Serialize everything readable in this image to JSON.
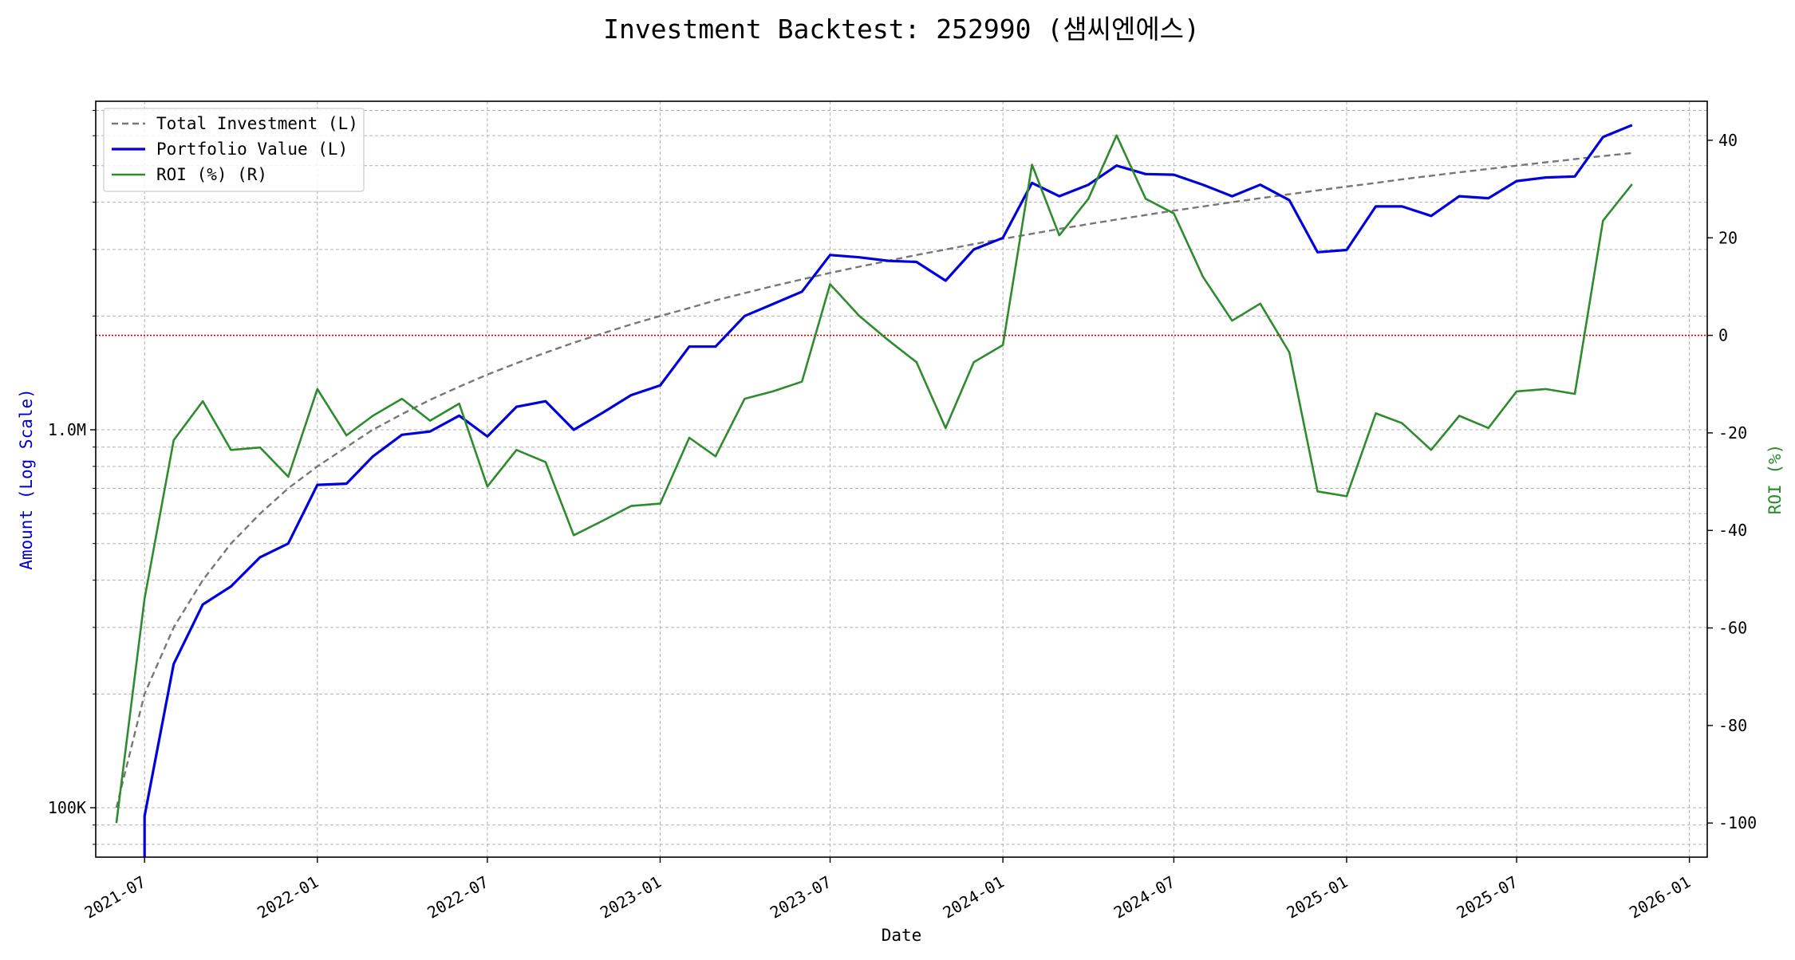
{
  "chart_data": {
    "type": "line",
    "title": "Investment Backtest: 252990 (샘씨엔에스)",
    "xlabel": "Date",
    "ylabel_left": "Amount (Log Scale)",
    "ylabel_right": "ROI (%)",
    "left_axis": {
      "scale": "log",
      "range": [
        74000,
        7400000
      ],
      "tick_values": [
        100000,
        1000000
      ],
      "tick_labels": [
        "100K",
        "1.0M"
      ],
      "color": "#0000cc"
    },
    "right_axis": {
      "scale": "linear",
      "range": [
        -107,
        48
      ],
      "tick_values": [
        -100,
        -80,
        -60,
        -40,
        -20,
        0,
        20,
        40
      ],
      "tick_labels": [
        "-100",
        "-80",
        "-60",
        "-40",
        "-20",
        "0",
        "20",
        "40"
      ],
      "color": "#228b22"
    },
    "x_axis": {
      "range": [
        "2021-05-10",
        "2026-01-20"
      ],
      "tick_values": [
        "2021-07-01",
        "2022-01-01",
        "2022-07-01",
        "2023-01-01",
        "2023-07-01",
        "2024-01-01",
        "2024-07-01",
        "2025-01-01",
        "2025-07-01",
        "2026-01-01"
      ],
      "tick_labels": [
        "2021-07",
        "2022-01",
        "2022-07",
        "2023-01",
        "2023-07",
        "2024-01",
        "2024-07",
        "2025-01",
        "2025-07",
        "2026-01"
      ]
    },
    "grid": true,
    "legend_position": "top-left",
    "reference_line": {
      "axis": "right",
      "value": 0,
      "color": "#cc0000",
      "style": "dotted"
    },
    "x": [
      "2021-06-01",
      "2021-07-01",
      "2021-08-01",
      "2021-09-01",
      "2021-10-01",
      "2021-11-01",
      "2021-12-01",
      "2022-01-01",
      "2022-02-01",
      "2022-03-01",
      "2022-04-01",
      "2022-05-01",
      "2022-06-01",
      "2022-07-01",
      "2022-08-01",
      "2022-09-01",
      "2022-10-01",
      "2022-11-01",
      "2022-12-01",
      "2023-01-01",
      "2023-02-01",
      "2023-03-01",
      "2023-04-01",
      "2023-05-01",
      "2023-06-01",
      "2023-07-01",
      "2023-08-01",
      "2023-09-01",
      "2023-10-01",
      "2023-11-01",
      "2023-12-01",
      "2024-01-01",
      "2024-02-01",
      "2024-03-01",
      "2024-04-01",
      "2024-05-01",
      "2024-06-01",
      "2024-07-01",
      "2024-08-01",
      "2024-09-01",
      "2024-10-01",
      "2024-11-01",
      "2024-12-01",
      "2025-01-01",
      "2025-02-01",
      "2025-03-01",
      "2025-04-01",
      "2025-05-01",
      "2025-06-01",
      "2025-07-01",
      "2025-08-01",
      "2025-09-01",
      "2025-10-01",
      "2025-11-01"
    ],
    "series": [
      {
        "name": "Total Investment (L)",
        "axis": "left",
        "color": "#777777",
        "dash": "dashed",
        "values": [
          100000,
          200000,
          300000,
          400000,
          500000,
          600000,
          700000,
          800000,
          900000,
          1000000,
          1100000,
          1200000,
          1300000,
          1400000,
          1500000,
          1600000,
          1700000,
          1800000,
          1900000,
          2000000,
          2100000,
          2200000,
          2300000,
          2400000,
          2500000,
          2600000,
          2700000,
          2800000,
          2900000,
          3000000,
          3100000,
          3200000,
          3300000,
          3400000,
          3500000,
          3600000,
          3700000,
          3800000,
          3900000,
          4000000,
          4100000,
          4200000,
          4300000,
          4400000,
          4500000,
          4600000,
          4700000,
          4800000,
          4900000,
          5000000,
          5100000,
          5200000,
          5300000,
          5400000
        ]
      },
      {
        "name": "Portfolio Value (L)",
        "axis": "left",
        "color": "#0000dd",
        "dash": "solid",
        "values": [
          null,
          95000,
          240000,
          345000,
          385000,
          460000,
          500000,
          715000,
          720000,
          850000,
          970000,
          990000,
          1090000,
          960000,
          1150000,
          1190000,
          1000000,
          1110000,
          1235000,
          1310000,
          1660000,
          1660000,
          2000000,
          2150000,
          2320000,
          2900000,
          2860000,
          2800000,
          2780000,
          2480000,
          3000000,
          3220000,
          4500000,
          4150000,
          4450000,
          5000000,
          4750000,
          4730000,
          4450000,
          4150000,
          4450000,
          4050000,
          2950000,
          2990000,
          3900000,
          3900000,
          3680000,
          4150000,
          4100000,
          4550000,
          4650000,
          4680000,
          5950000,
          6400000
        ]
      },
      {
        "name": "ROI (%) (R)",
        "axis": "right",
        "color": "#2e8b2e",
        "dash": "solid",
        "values": [
          -100,
          -54,
          -21.5,
          -13.5,
          -23.5,
          -23,
          -29,
          -11,
          -20.5,
          -16.5,
          -13,
          -17.5,
          -14,
          -31,
          -23.5,
          -26,
          -41,
          -38,
          -35,
          -34.5,
          -21,
          -24.8,
          -13,
          -11.5,
          -9.5,
          10.5,
          4,
          -1,
          -5.5,
          -19,
          -5.5,
          -2,
          35,
          20.5,
          28,
          41,
          28,
          25,
          12,
          3,
          6.5,
          -3.5,
          -32,
          -33,
          -16,
          -18,
          -23.5,
          -16.5,
          -19,
          -11.5,
          -11,
          -12,
          23.5,
          31
        ]
      }
    ]
  }
}
